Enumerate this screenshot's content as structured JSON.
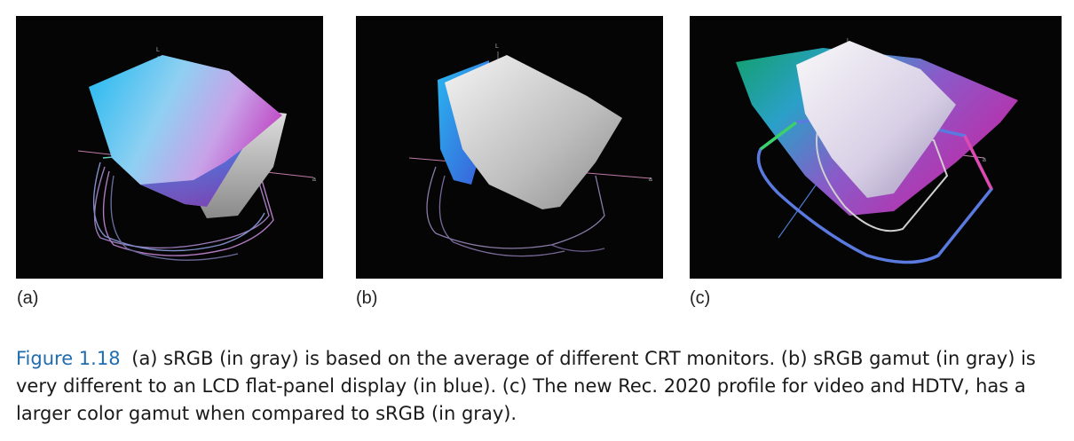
{
  "panels": [
    {
      "label": "(a)",
      "axis_l": "L",
      "axis_a": "a",
      "gray_name": "sRGB",
      "colored_name": "CRT monitors"
    },
    {
      "label": "(b)",
      "axis_l": "L",
      "axis_a": "a",
      "gray_name": "sRGB",
      "colored_name": "LCD flat-panel display"
    },
    {
      "label": "(c)",
      "axis_l": "L",
      "axis_a": "a",
      "gray_name": "sRGB",
      "colored_name": "Rec. 2020"
    }
  ],
  "caption": {
    "figure_number": "Figure 1.18",
    "text": "(a) sRGB (in gray) is based on the average of different CRT monitors. (b) sRGB gamut (in gray) is very different to an LCD flat-panel display (in blue). (c) The new Rec. 2020 profile for video and HDTV, has a larger color gamut when compared to sRGB (in gray).",
    "number_color": "#1f6db0"
  }
}
